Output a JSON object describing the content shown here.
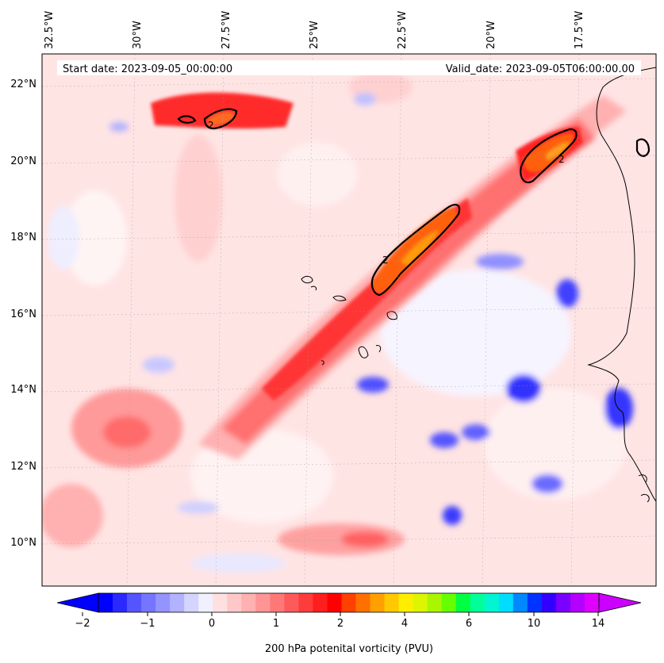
{
  "header": {
    "start_date": "Start date: 2023-09-05_00:00:00",
    "valid_date": "Valid_date: 2023-09-05T06:00:00.00"
  },
  "axes": {
    "longitude_labels": [
      "32.5°W",
      "30°W",
      "27.5°W",
      "25°W",
      "22.5°W",
      "20°W",
      "17.5°W"
    ],
    "latitude_labels": [
      "22°N",
      "20°N",
      "18°N",
      "16°N",
      "14°N",
      "12°N",
      "10°N"
    ]
  },
  "colorbar": {
    "label": "200 hPa potenital vorticity (PVU)",
    "tick_labels": [
      "−2",
      "−1",
      "0",
      "1",
      "2",
      "4",
      "6",
      "10",
      "14"
    ],
    "colors": [
      "#0000ff",
      "#2a2aff",
      "#5555ff",
      "#7575ff",
      "#9494ff",
      "#b2b2ff",
      "#d4d4ff",
      "#f0f0ff",
      "#ffe0e0",
      "#ffc8c8",
      "#ffb0b0",
      "#ff9494",
      "#ff7878",
      "#ff5a5a",
      "#ff3c3c",
      "#ff1e1e",
      "#ff0000",
      "#ff4000",
      "#ff7000",
      "#ffa000",
      "#ffc800",
      "#ffee00",
      "#ddf500",
      "#aaf500",
      "#66ff00",
      "#00ff40",
      "#00ff99",
      "#00f5d0",
      "#00ddff",
      "#0088ff",
      "#0033ff",
      "#3300ff",
      "#7a00ff",
      "#b300ff",
      "#e000ff"
    ],
    "extend_low_color": "#0000ff",
    "extend_high_color": "#cc00ff"
  },
  "contour_level_label": "2",
  "colors": {
    "background_field": "#ffe6e6",
    "jet_core": "#ff3030",
    "coastline": "#000000"
  }
}
